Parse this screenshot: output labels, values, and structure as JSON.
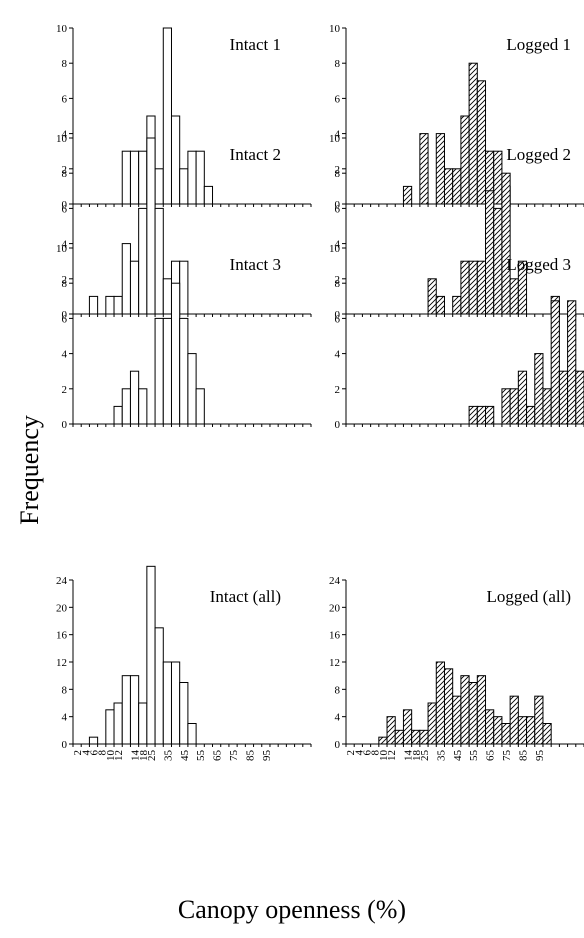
{
  "figure": {
    "ylabel": "Frequency",
    "xlabel": "Canopy openness (%)"
  },
  "x_tick_labels": [
    "2",
    "4",
    "6",
    "8",
    "10",
    "12",
    "14",
    "18",
    "25",
    "35",
    "45",
    "55",
    "65",
    "75",
    "85",
    "95"
  ],
  "chart_data": [
    {
      "type": "bar",
      "title": "Intact 1",
      "style": "open",
      "bin_index_values": [
        [
          6,
          3
        ],
        [
          7,
          3
        ],
        [
          8,
          3
        ],
        [
          9,
          5
        ],
        [
          10,
          2
        ],
        [
          11,
          10
        ],
        [
          12,
          5
        ],
        [
          13,
          2
        ],
        [
          14,
          3
        ],
        [
          15,
          3
        ],
        [
          16,
          1
        ]
      ],
      "ylim": [
        0,
        10
      ],
      "yticks": [
        0,
        2,
        4,
        6,
        8,
        10
      ]
    },
    {
      "type": "bar",
      "title": "Logged 1",
      "style": "hatched",
      "bin_index_values": [
        [
          7,
          1
        ],
        [
          9,
          4
        ],
        [
          11,
          4
        ],
        [
          12,
          2
        ],
        [
          13,
          2
        ],
        [
          14,
          5
        ],
        [
          15,
          8
        ],
        [
          16,
          7
        ],
        [
          17,
          3
        ],
        [
          18,
          3
        ],
        [
          19,
          1
        ]
      ],
      "ylim": [
        0,
        10
      ],
      "yticks": [
        0,
        2,
        4,
        6,
        8,
        10
      ]
    },
    {
      "type": "bar",
      "title": "Intact 2",
      "style": "open",
      "bin_index_values": [
        [
          2,
          1
        ],
        [
          4,
          1
        ],
        [
          5,
          1
        ],
        [
          6,
          4
        ],
        [
          7,
          3
        ],
        [
          8,
          6
        ],
        [
          9,
          10
        ],
        [
          10,
          6
        ],
        [
          11,
          2
        ],
        [
          12,
          3
        ],
        [
          13,
          3
        ]
      ],
      "ylim": [
        0,
        10
      ],
      "yticks": [
        0,
        2,
        4,
        6,
        8,
        10
      ]
    },
    {
      "type": "bar",
      "title": "Logged 2",
      "style": "hatched",
      "bin_index_values": [
        [
          10,
          2
        ],
        [
          11,
          1
        ],
        [
          13,
          1
        ],
        [
          14,
          3
        ],
        [
          15,
          3
        ],
        [
          16,
          3
        ],
        [
          17,
          7
        ],
        [
          18,
          6
        ],
        [
          19,
          8
        ],
        [
          20,
          2
        ],
        [
          21,
          3
        ],
        [
          25,
          1
        ]
      ],
      "ylim": [
        0,
        10
      ],
      "yticks": [
        0,
        2,
        4,
        6,
        8,
        10
      ]
    },
    {
      "type": "bar",
      "title": "Intact 3",
      "style": "open",
      "bin_index_values": [
        [
          5,
          1
        ],
        [
          6,
          2
        ],
        [
          7,
          3
        ],
        [
          8,
          2
        ],
        [
          10,
          6
        ],
        [
          11,
          6
        ],
        [
          12,
          8
        ],
        [
          13,
          6
        ],
        [
          14,
          4
        ],
        [
          15,
          2
        ]
      ],
      "ylim": [
        0,
        10
      ],
      "yticks": [
        0,
        2,
        4,
        6,
        8,
        10
      ]
    },
    {
      "type": "bar",
      "title": "Logged 3",
      "style": "hatched",
      "bin_index_values": [
        [
          15,
          1
        ],
        [
          16,
          1
        ],
        [
          17,
          1
        ],
        [
          19,
          2
        ],
        [
          20,
          2
        ],
        [
          21,
          3
        ],
        [
          22,
          1
        ],
        [
          23,
          4
        ],
        [
          24,
          2
        ],
        [
          25,
          7
        ],
        [
          26,
          3
        ],
        [
          27,
          7
        ],
        [
          28,
          3
        ]
      ],
      "ylim": [
        0,
        10
      ],
      "yticks": [
        0,
        2,
        4,
        6,
        8,
        10
      ]
    },
    {
      "type": "bar",
      "title": "Intact (all)",
      "style": "open",
      "bin_index_values": [
        [
          2,
          1
        ],
        [
          4,
          5
        ],
        [
          5,
          6
        ],
        [
          6,
          10
        ],
        [
          7,
          10
        ],
        [
          8,
          6
        ],
        [
          9,
          26
        ],
        [
          10,
          17
        ],
        [
          11,
          12
        ],
        [
          12,
          12
        ],
        [
          13,
          9
        ],
        [
          14,
          3
        ]
      ],
      "ylim": [
        0,
        24
      ],
      "yticks": [
        0,
        4,
        8,
        12,
        16,
        20,
        24
      ]
    },
    {
      "type": "bar",
      "title": "Logged (all)",
      "style": "hatched",
      "bin_index_values": [
        [
          4,
          1
        ],
        [
          5,
          4
        ],
        [
          6,
          2
        ],
        [
          7,
          5
        ],
        [
          8,
          2
        ],
        [
          9,
          2
        ],
        [
          10,
          6
        ],
        [
          11,
          12
        ],
        [
          12,
          11
        ],
        [
          13,
          7
        ],
        [
          14,
          10
        ],
        [
          15,
          9
        ],
        [
          16,
          10
        ],
        [
          17,
          5
        ],
        [
          18,
          4
        ],
        [
          19,
          3
        ],
        [
          20,
          7
        ],
        [
          21,
          4
        ],
        [
          22,
          4
        ],
        [
          23,
          7
        ],
        [
          24,
          3
        ]
      ],
      "ylim": [
        0,
        24
      ],
      "yticks": [
        0,
        4,
        8,
        12,
        16,
        20,
        24
      ]
    }
  ]
}
